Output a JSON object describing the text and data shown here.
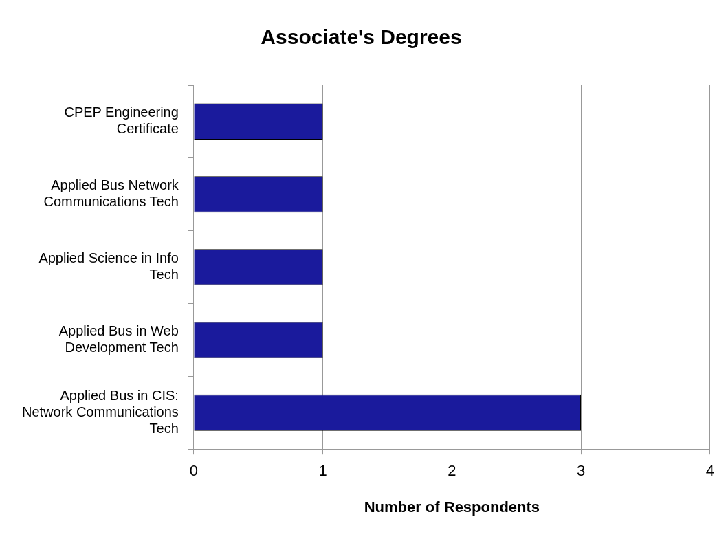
{
  "chart_data": {
    "type": "bar",
    "orientation": "horizontal",
    "title": "Associate's Degrees",
    "xlabel": "Number of Respondents",
    "categories": [
      "CPEP Engineering Certificate",
      "Applied Bus Network Communications Tech",
      "Applied Science in Info Tech",
      "Applied Bus in Web Development Tech",
      "Applied Bus in CIS: Network Communications Tech"
    ],
    "values": [
      1,
      1,
      1,
      1,
      3
    ],
    "color": "#1a1a9c",
    "xlim": [
      0,
      4
    ],
    "xticks": [
      0,
      1,
      2,
      3,
      4
    ],
    "grid": "x",
    "legend": false
  }
}
